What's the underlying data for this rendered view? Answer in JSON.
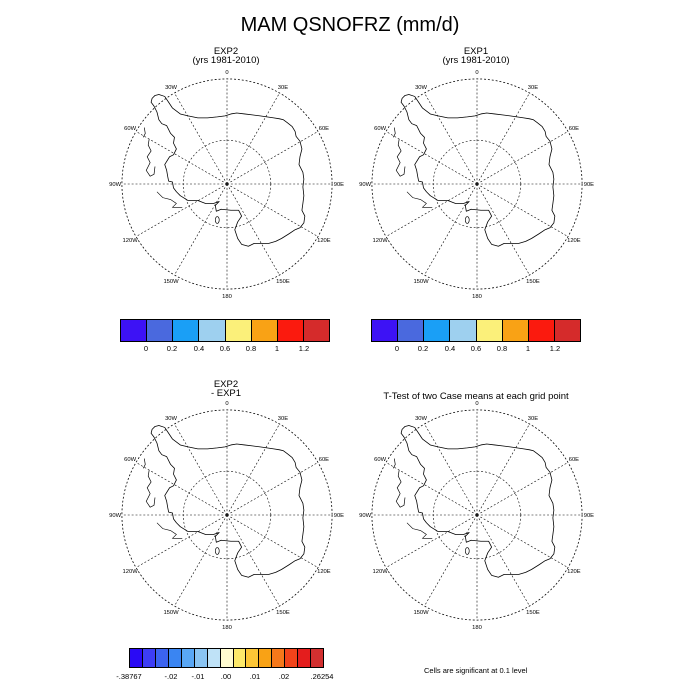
{
  "title": "MAM QSNOFRZ (mm/d)",
  "panels": [
    {
      "title_line1": "EXP2",
      "title_line2": "(yrs 1981-2010)"
    },
    {
      "title_line1": "EXP1",
      "title_line2": "(yrs 1981-2010)"
    },
    {
      "title_line1": "EXP2",
      "title_line2": "- EXP1"
    },
    {
      "title_line1": "T-Test of two Case means at each grid point",
      "title_line2": ""
    }
  ],
  "map_labels": {
    "lon_0": "0",
    "lon_30E": "30E",
    "lon_60E": "60E",
    "lon_90E": "90E",
    "lon_120E": "120E",
    "lon_150E": "150E",
    "lon_180": "180",
    "lon_150W": "150W",
    "lon_120W": "120W",
    "lon_90W": "90W",
    "lon_60W": "60W",
    "lon_30W": "30W"
  },
  "colorbar_abs": {
    "colors": [
      "#3d12f5",
      "#4a69de",
      "#1a9ff6",
      "#9ed0ef",
      "#fbf07a",
      "#f9a215",
      "#fb1a0e",
      "#d52b2b"
    ],
    "labels": [
      "0",
      "0.2",
      "0.4",
      "0.6",
      "0.8",
      "1",
      "1.2"
    ]
  },
  "colorbar_diff": {
    "colors": [
      "#2a0af5",
      "#3d3df5",
      "#3b63f0",
      "#3a85f2",
      "#59a7f5",
      "#8ac4f2",
      "#bfe2f7",
      "#fffbd0",
      "#fde96a",
      "#fcc636",
      "#f9a215",
      "#f6781a",
      "#f2431a",
      "#e41d1d",
      "#d23030"
    ],
    "labels": [
      "-.38767",
      "-.02",
      "-.01",
      ".00",
      ".01",
      ".02",
      ".26254"
    ]
  },
  "note": "Cells are significant at 0.1 level"
}
